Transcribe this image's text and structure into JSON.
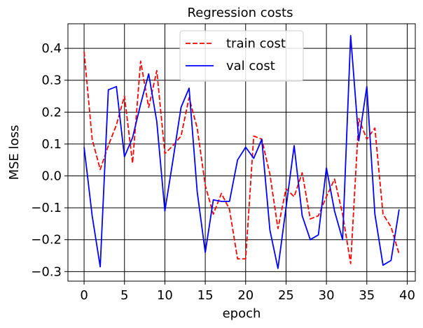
{
  "chart_data": {
    "type": "line",
    "title": "Regression costs",
    "xlabel": "epoch",
    "ylabel": "MSE loss",
    "xlim": [
      -2,
      41
    ],
    "ylim": [
      -0.33,
      0.477
    ],
    "xticks": [
      0,
      5,
      10,
      15,
      20,
      25,
      30,
      35,
      40
    ],
    "yticks": [
      0.4,
      0.3,
      0.2,
      0.1,
      0.0,
      -0.1,
      -0.2,
      -0.3
    ],
    "xtick_labels": [
      "0",
      "5",
      "10",
      "15",
      "20",
      "25",
      "30",
      "35",
      "40"
    ],
    "ytick_labels": [
      "0.4",
      "0.3",
      "0.2",
      "0.1",
      "0.0",
      "−0.1",
      "−0.2",
      "−0.3"
    ],
    "grid": true,
    "legend_position": "top-center",
    "x": [
      0,
      1,
      2,
      3,
      4,
      5,
      6,
      7,
      8,
      9,
      10,
      11,
      12,
      13,
      14,
      15,
      16,
      17,
      18,
      19,
      20,
      21,
      22,
      23,
      24,
      25,
      26,
      27,
      28,
      29,
      30,
      31,
      32,
      33,
      34,
      35,
      36,
      37,
      38,
      39
    ],
    "series": [
      {
        "name": "train cost",
        "color": "#ff0000",
        "dash": "dashed",
        "values": [
          0.39,
          0.115,
          0.02,
          0.095,
          0.16,
          0.25,
          0.04,
          0.36,
          0.215,
          0.33,
          0.07,
          0.095,
          0.125,
          0.245,
          0.15,
          -0.03,
          -0.12,
          -0.055,
          -0.105,
          -0.26,
          -0.26,
          0.125,
          0.115,
          0.005,
          -0.165,
          -0.04,
          -0.065,
          0.01,
          -0.135,
          -0.125,
          -0.065,
          -0.01,
          -0.12,
          -0.275,
          0.18,
          0.115,
          0.15,
          -0.12,
          -0.16,
          -0.245
        ]
      },
      {
        "name": "val cost",
        "color": "#0000ff",
        "dash": "solid",
        "values": [
          0.09,
          -0.125,
          -0.285,
          0.27,
          0.28,
          0.06,
          0.12,
          0.225,
          0.32,
          0.17,
          -0.11,
          0.05,
          0.215,
          0.275,
          -0.05,
          -0.24,
          -0.075,
          -0.08,
          -0.08,
          0.05,
          0.09,
          0.055,
          0.115,
          -0.17,
          -0.29,
          -0.1,
          0.095,
          -0.125,
          -0.2,
          -0.185,
          0.025,
          -0.11,
          -0.2,
          0.44,
          0.11,
          0.28,
          -0.12,
          -0.28,
          -0.265,
          -0.105
        ]
      }
    ]
  }
}
